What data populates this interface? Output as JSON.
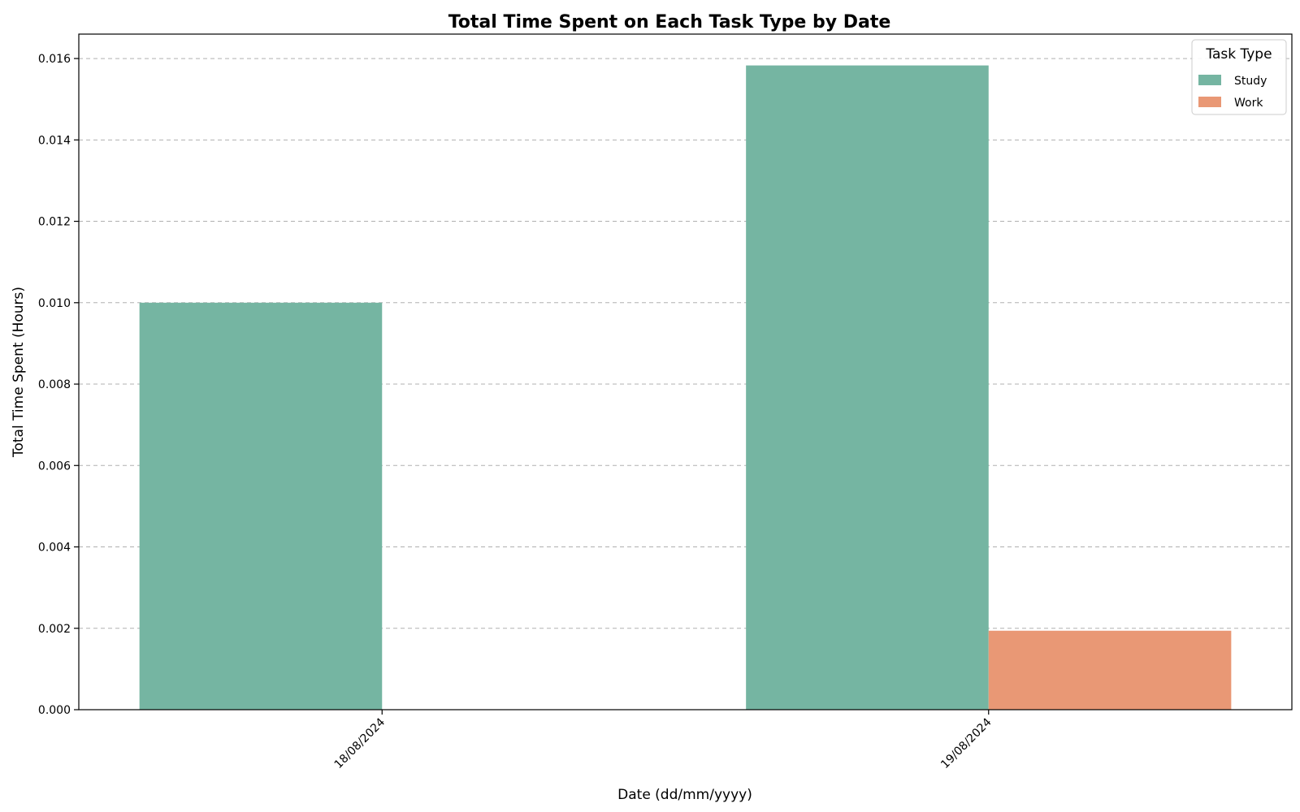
{
  "chart_data": {
    "type": "bar",
    "title": "Total Time Spent on Each Task Type by Date",
    "xlabel": "Date (dd/mm/yyyy)",
    "ylabel": "Total Time Spent (Hours)",
    "categories": [
      "18/08/2024",
      "19/08/2024"
    ],
    "series": [
      {
        "name": "Study",
        "values": [
          0.01,
          0.01583
        ],
        "color": "#75b5a2"
      },
      {
        "name": "Work",
        "values": [
          0,
          0.00194
        ],
        "color": "#e99875"
      }
    ],
    "ylim": [
      0,
      0.0166
    ],
    "yticks": [
      "0.000",
      "0.002",
      "0.004",
      "0.006",
      "0.008",
      "0.010",
      "0.012",
      "0.014",
      "0.016"
    ],
    "grid": true,
    "legend": {
      "title": "Task Type",
      "placement": "top-right"
    }
  }
}
